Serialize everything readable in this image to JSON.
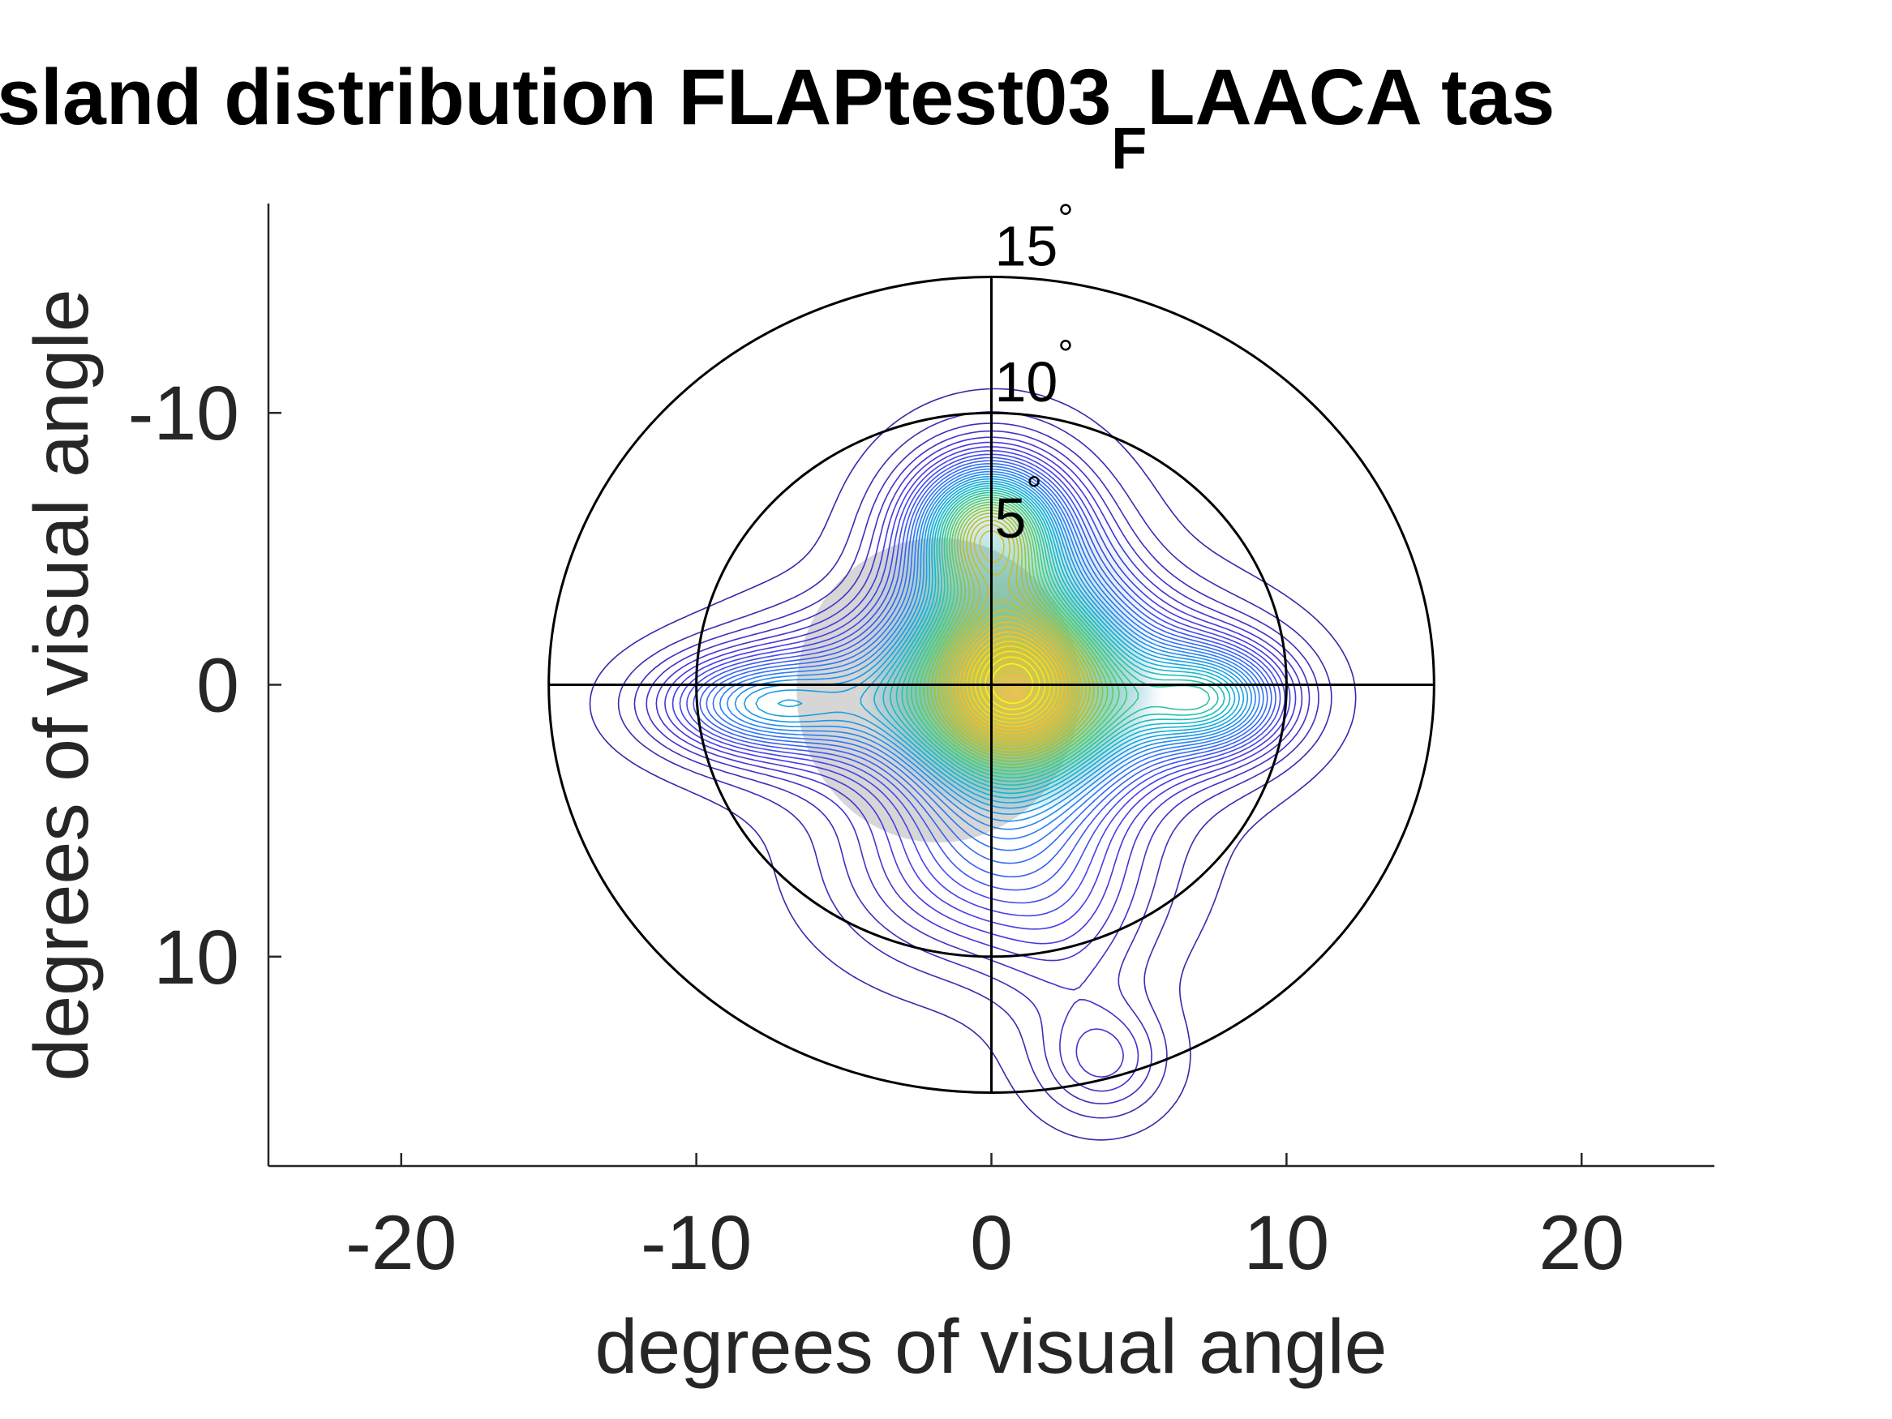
{
  "chart_data": {
    "type": "contour",
    "title": {
      "main": "sland distribution FLAPtest03",
      "subscript": "F",
      "suffix": "LAACA tas"
    },
    "xlabel": "degrees of visual angle",
    "ylabel": "degrees of visual angle",
    "xlim": [
      -24.5,
      24.5
    ],
    "ylim": [
      17.7,
      -17.7
    ],
    "y_direction": "reversed",
    "x_ticks": [
      -20,
      -10,
      0,
      10,
      20
    ],
    "x_tick_labels": [
      "-20",
      "-10",
      "0",
      "10",
      "20"
    ],
    "y_ticks": [
      -10,
      0,
      10
    ],
    "y_tick_labels": [
      "-10",
      "0",
      "10"
    ],
    "grid": false,
    "polar_overlay": {
      "rings_deg": [
        5,
        10,
        15
      ],
      "drawn_rings_deg": [
        10,
        15
      ],
      "ring_labels": [
        {
          "deg": 15,
          "text": "15",
          "unit": "°"
        },
        {
          "deg": 10,
          "text": "10",
          "unit": "°"
        },
        {
          "deg": 5,
          "text": "5",
          "unit": "°"
        }
      ],
      "crosshair_extent_deg": 15,
      "line_color": "#000000"
    },
    "density_peaks": [
      {
        "x": 0.6,
        "y": 0.3,
        "level": 1.0
      },
      {
        "x": -0.1,
        "y": -5.8,
        "level": 0.85
      },
      {
        "x": 7.5,
        "y": 0.5,
        "level": 0.55
      },
      {
        "x": -8.0,
        "y": 0.7,
        "level": 0.45
      },
      {
        "x": 3.8,
        "y": 13.8,
        "level": 0.15
      }
    ],
    "shaded_region_color": "#b4b4b4",
    "contour_colormap": [
      "#3e26a8",
      "#4a3de8",
      "#2d7cf6",
      "#10b4d3",
      "#4bcd74",
      "#bdbc27",
      "#fdbb2d",
      "#f9fb0e"
    ]
  }
}
